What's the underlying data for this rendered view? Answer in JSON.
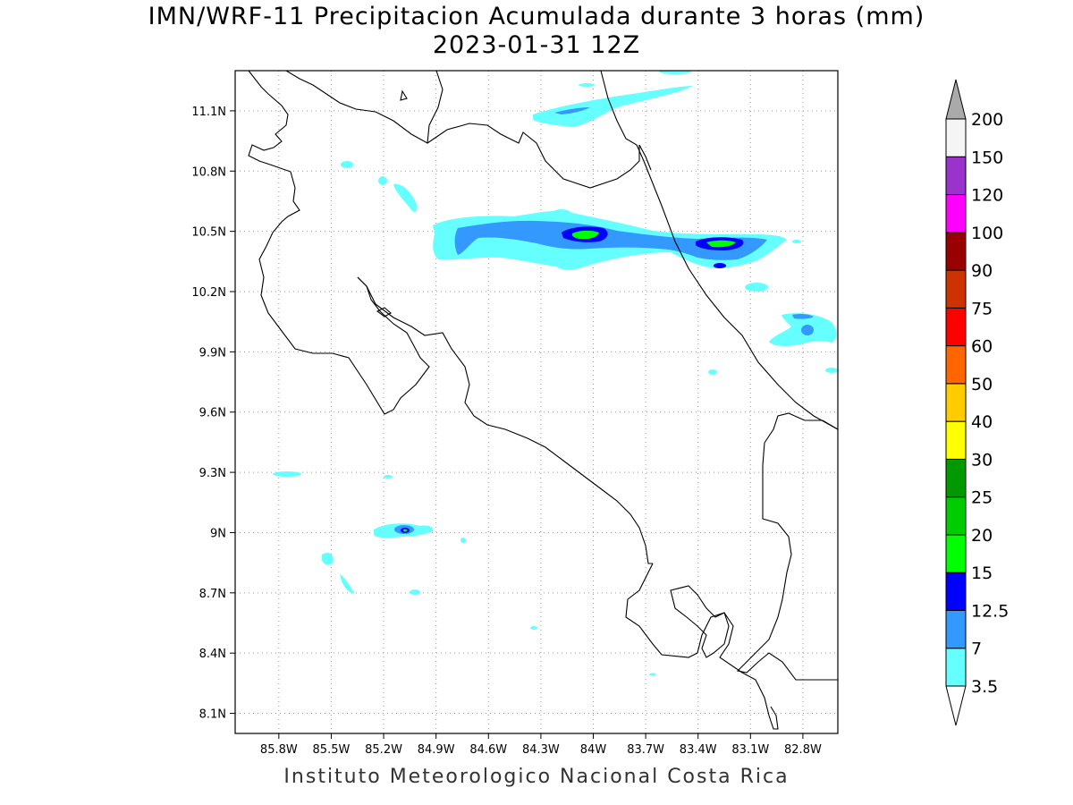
{
  "title": {
    "line1": "IMN/WRF-11 Precipitacion Acumulada durante 3 horas (mm)",
    "line2": "2023-01-31 12Z"
  },
  "footer": "Instituto Meteorologico Nacional Costa Rica",
  "map": {
    "lon_range": [
      -86.05,
      -82.6
    ],
    "lat_range": [
      8.0,
      11.3
    ],
    "lon_ticks": [
      {
        "value": -85.8,
        "label": "85.8W"
      },
      {
        "value": -85.5,
        "label": "85.5W"
      },
      {
        "value": -85.2,
        "label": "85.2W"
      },
      {
        "value": -84.9,
        "label": "84.9W"
      },
      {
        "value": -84.6,
        "label": "84.6W"
      },
      {
        "value": -84.3,
        "label": "84.3W"
      },
      {
        "value": -84.0,
        "label": "84W"
      },
      {
        "value": -83.7,
        "label": "83.7W"
      },
      {
        "value": -83.4,
        "label": "83.4W"
      },
      {
        "value": -83.1,
        "label": "83.1W"
      },
      {
        "value": -82.8,
        "label": "82.8W"
      }
    ],
    "lat_ticks": [
      {
        "value": 8.1,
        "label": "8.1N"
      },
      {
        "value": 8.4,
        "label": "8.4N"
      },
      {
        "value": 8.7,
        "label": "8.7N"
      },
      {
        "value": 9.0,
        "label": "9N"
      },
      {
        "value": 9.3,
        "label": "9.3N"
      },
      {
        "value": 9.6,
        "label": "9.6N"
      },
      {
        "value": 9.9,
        "label": "9.9N"
      },
      {
        "value": 10.2,
        "label": "10.2N"
      },
      {
        "value": 10.5,
        "label": "10.5N"
      },
      {
        "value": 10.8,
        "label": "10.8N"
      },
      {
        "value": 11.1,
        "label": "11.1N"
      }
    ],
    "grid": true,
    "colors": {
      "cyan": "#66ffff",
      "lightblue": "#3399ff",
      "blue": "#0000ff",
      "green": "#00ff00"
    }
  },
  "legend": {
    "levels": [
      "3.5",
      "7",
      "12.5",
      "15",
      "20",
      "25",
      "30",
      "40",
      "50",
      "60",
      "75",
      "90",
      "100",
      "120",
      "150",
      "200"
    ],
    "colors": [
      "#ffffff",
      "#66ffff",
      "#3399ff",
      "#0000ff",
      "#00ff00",
      "#00cc00",
      "#009900",
      "#ffff00",
      "#ffcc00",
      "#ff6600",
      "#ff0000",
      "#cc3300",
      "#990000",
      "#ff00ff",
      "#9933cc",
      "#f5f5f5"
    ],
    "max_arrow_color": "#aaaaaa",
    "min_arrow_color": "#ffffff"
  }
}
